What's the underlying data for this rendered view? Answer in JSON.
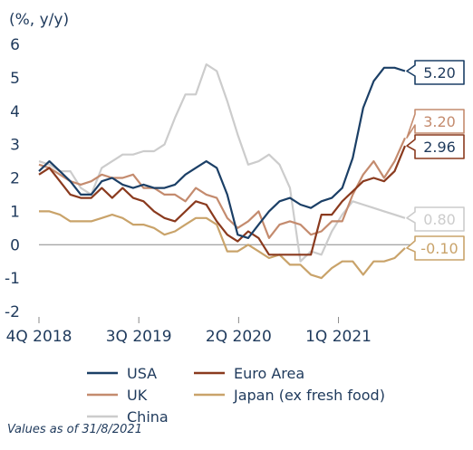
{
  "chart_data": {
    "type": "line",
    "unit_label": "(%, y/y)",
    "x_tick_labels": [
      "4Q 2018",
      "3Q 2019",
      "2Q 2020",
      "1Q 2021"
    ],
    "y_ticks": [
      6,
      5,
      4,
      3,
      2,
      1,
      0,
      -1,
      -2
    ],
    "ylim": [
      -2,
      6
    ],
    "x_range": [
      0,
      33
    ],
    "x_tick_positions": [
      0,
      9,
      18,
      27
    ],
    "grid": false,
    "legend_position": "bottom",
    "note": "Values as of 31/8/2021",
    "series": [
      {
        "name": "USA",
        "color": "#1b3f66",
        "end_label": "5.20",
        "values": [
          2.2,
          2.5,
          2.2,
          1.9,
          1.5,
          1.5,
          1.9,
          2.0,
          1.8,
          1.7,
          1.8,
          1.7,
          1.7,
          1.8,
          2.1,
          2.3,
          2.5,
          2.3,
          1.5,
          0.3,
          0.2,
          0.6,
          1.0,
          1.3,
          1.4,
          1.2,
          1.1,
          1.3,
          1.4,
          1.7,
          2.6,
          4.1,
          4.9,
          5.3,
          5.3,
          5.2
        ]
      },
      {
        "name": "Euro Area",
        "color": "#8a3a1e",
        "end_label": "2.96",
        "values": [
          2.1,
          2.3,
          1.9,
          1.5,
          1.4,
          1.4,
          1.7,
          1.4,
          1.7,
          1.4,
          1.3,
          1.0,
          0.8,
          0.7,
          1.0,
          1.3,
          1.2,
          0.7,
          0.3,
          0.1,
          0.4,
          0.2,
          -0.3,
          -0.3,
          -0.3,
          -0.3,
          -0.3,
          0.9,
          0.9,
          1.3,
          1.6,
          1.9,
          2.0,
          1.9,
          2.2,
          2.96
        ]
      },
      {
        "name": "UK",
        "color": "#c48b6e",
        "end_label": "3.20",
        "values": [
          2.4,
          2.3,
          2.1,
          1.9,
          1.8,
          1.9,
          2.1,
          2.0,
          2.0,
          2.1,
          1.7,
          1.7,
          1.5,
          1.5,
          1.3,
          1.7,
          1.5,
          1.4,
          0.8,
          0.5,
          0.7,
          1.0,
          0.2,
          0.6,
          0.7,
          0.6,
          0.3,
          0.4,
          0.7,
          0.7,
          1.5,
          2.1,
          2.5,
          2.0,
          2.5,
          3.2
        ]
      },
      {
        "name": "Japan (ex fresh food)",
        "color": "#c9a36a",
        "end_label": "-0.10",
        "values": [
          1.0,
          1.0,
          0.9,
          0.7,
          0.7,
          0.7,
          0.8,
          0.9,
          0.8,
          0.6,
          0.6,
          0.5,
          0.3,
          0.4,
          0.6,
          0.8,
          0.8,
          0.6,
          -0.2,
          -0.2,
          0.0,
          -0.2,
          -0.4,
          -0.3,
          -0.6,
          -0.6,
          -0.9,
          -1.0,
          -0.7,
          -0.5,
          -0.5,
          -0.9,
          -0.5,
          -0.5,
          -0.4,
          -0.1
        ]
      },
      {
        "name": "China",
        "color": "#cccccc",
        "end_label": "0.80",
        "values": [
          2.5,
          2.4,
          2.2,
          2.2,
          1.7,
          1.5,
          2.3,
          2.5,
          2.7,
          2.7,
          2.8,
          2.8,
          3.0,
          3.8,
          4.5,
          4.5,
          5.4,
          5.2,
          4.3,
          3.3,
          2.4,
          2.5,
          2.7,
          2.4,
          1.7,
          -0.5,
          -0.2,
          -0.3,
          0.4,
          0.9,
          1.3,
          1.2,
          1.1,
          1.0,
          0.9,
          0.8
        ]
      }
    ]
  }
}
